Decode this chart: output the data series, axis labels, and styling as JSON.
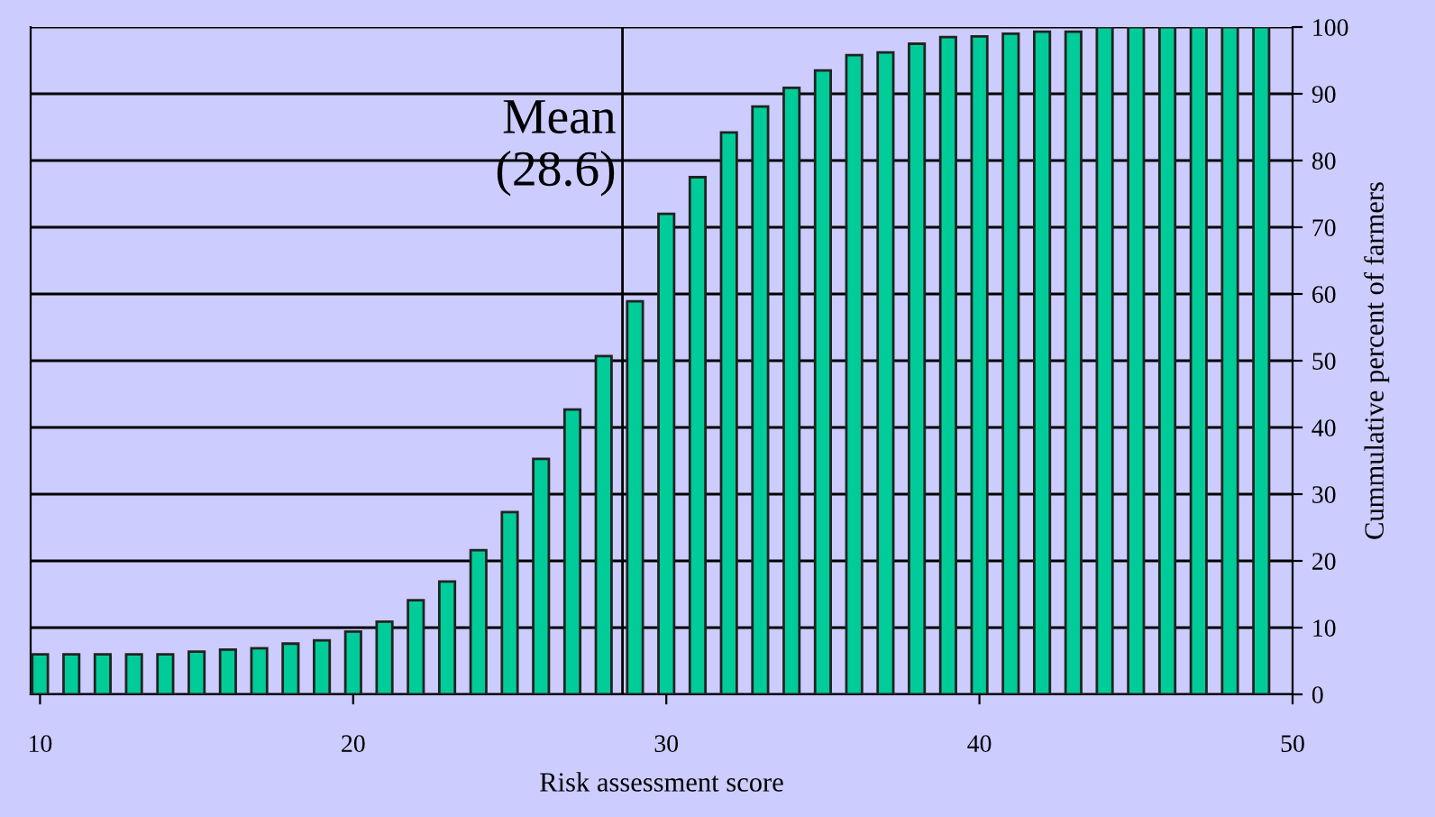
{
  "chart_data": {
    "type": "bar",
    "xlabel": "Risk assessment score",
    "ylabel": "Cummulative percent of farmers",
    "x": [
      10,
      11,
      12,
      13,
      14,
      15,
      16,
      17,
      18,
      19,
      20,
      21,
      22,
      23,
      24,
      25,
      26,
      27,
      28,
      29,
      30,
      31,
      32,
      33,
      34,
      35,
      36,
      37,
      38,
      39,
      40,
      41,
      42,
      43,
      44,
      45,
      46,
      47,
      48,
      49
    ],
    "values": [
      6.0,
      6.0,
      6.0,
      6.0,
      6.0,
      6.4,
      6.7,
      6.9,
      7.6,
      8.1,
      9.4,
      10.9,
      14.1,
      16.9,
      21.6,
      27.3,
      35.3,
      42.7,
      50.7,
      58.9,
      72.0,
      77.5,
      84.2,
      88.1,
      90.9,
      93.5,
      95.8,
      96.2,
      97.5,
      98.5,
      98.6,
      99.0,
      99.3,
      99.3,
      100,
      100,
      100,
      100,
      100,
      100
    ],
    "color": "#00cc99",
    "xlim": [
      9.7,
      50
    ],
    "xticks": [
      10,
      20,
      30,
      40,
      50
    ],
    "ylim": [
      0,
      100
    ],
    "yticks": [
      0,
      10,
      20,
      30,
      40,
      50,
      60,
      70,
      80,
      90,
      100
    ],
    "grid": "y",
    "ref_lines": [
      {
        "axis": "x",
        "value": 28.6,
        "label": "Mean\n(28.6)",
        "color": "#000000"
      }
    ]
  }
}
